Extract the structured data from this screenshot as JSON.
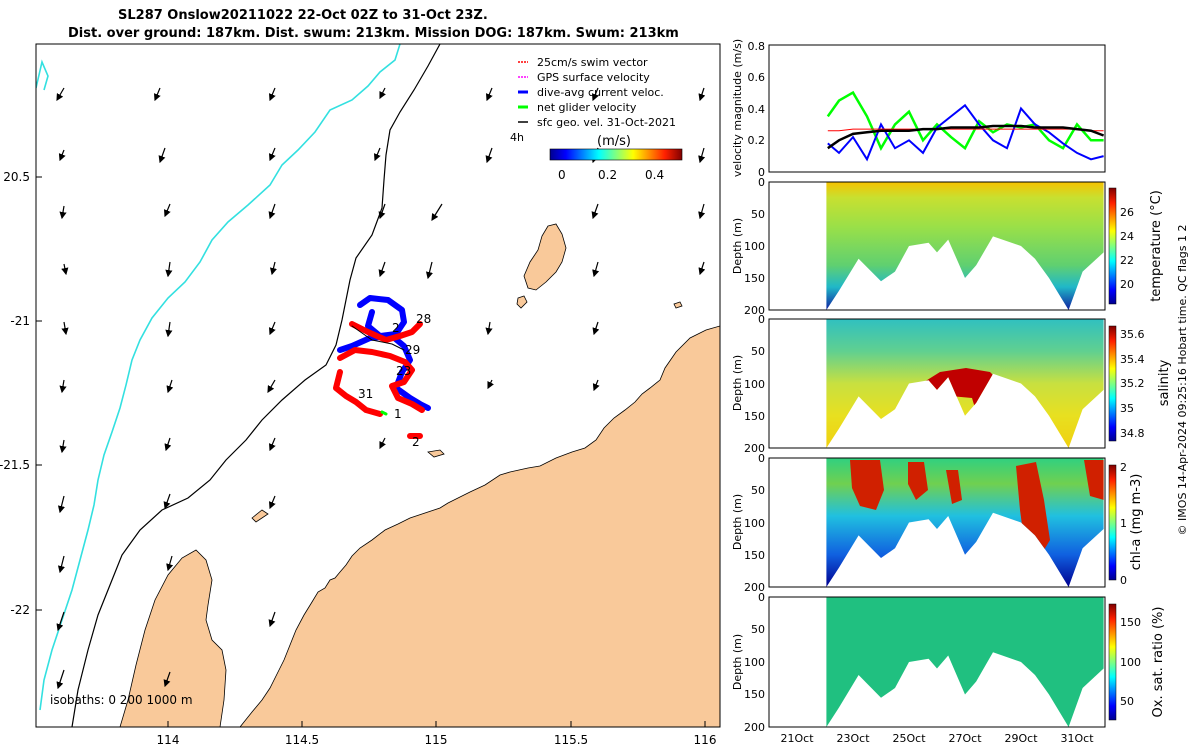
{
  "title": {
    "line1": "SL287 Onslow20211022 22-Oct 02Z to 31-Oct 23Z.",
    "line2": "Dist. over ground: 187km. Dist. swum: 213km. Mission DOG: 187km. Swum: 213km"
  },
  "copyright": "© IMOS 14-Apr-2024 09:25:16 Hobart time. QC flags 1  2",
  "colors": {
    "land": "#f9c99a",
    "coast_line": "#000000",
    "isobath": "#000000",
    "shallow_isobath": "#33e0e0",
    "swim_vector": "#ff0000",
    "dive_avg_current": "#0000ff",
    "net_glider_velocity": "#00ff00",
    "sfc_geo_vel": "#000000",
    "gps_surface_velocity": "#ff00ff"
  },
  "map": {
    "legend": [
      {
        "label": "25cm/s swim vector",
        "color": "#ff0000",
        "icon": "red-dash"
      },
      {
        "label": "GPS surface velocity",
        "color": "#ff00ff",
        "icon": "magenta-dash"
      },
      {
        "label": "dive-avg current veloc.",
        "color": "#0000ff",
        "icon": "blue-line"
      },
      {
        "label": "net glider velocity",
        "color": "#00ff00",
        "icon": "green-line"
      },
      {
        "label": "sfc geo. vel. 31-Oct-2021",
        "color": "#000000",
        "icon": "black-arrow"
      }
    ],
    "duration_label": "4h",
    "colorbar_unit": "(m/s)",
    "colorbar_ticks": [
      "0",
      "0.2",
      "0.4"
    ],
    "x_ticks": [
      "114",
      "114.5",
      "115",
      "115.5",
      "116"
    ],
    "y_ticks": [
      "20.5",
      "-21",
      "-21.5",
      "-22"
    ],
    "day_labels": [
      "28",
      "2",
      "29",
      "23",
      "31",
      "1",
      "2"
    ],
    "isobaths_label": "isobaths: 0   200  1000 m"
  },
  "chart_data": [
    {
      "type": "line",
      "ylabel": "velocity magnitude (m/s)",
      "ylim": [
        0,
        0.8
      ],
      "y_ticks": [
        "0",
        "0.2",
        "0.4",
        "0.6",
        "0.8"
      ],
      "series": [],
      "x_dates": [
        "22.1",
        "22.5",
        "23",
        "23.5",
        "24",
        "24.5",
        "25",
        "25.5",
        "26",
        "26.5",
        "27",
        "27.5",
        "28",
        "28.5",
        "29",
        "29.5",
        "30",
        "30.5",
        "31",
        "31.5",
        "31.95"
      ],
      "values_black": [
        0.15,
        0.2,
        0.24,
        0.25,
        0.26,
        0.26,
        0.26,
        0.27,
        0.27,
        0.28,
        0.28,
        0.28,
        0.29,
        0.29,
        0.29,
        0.28,
        0.28,
        0.28,
        0.27,
        0.26,
        0.23
      ],
      "values_blue": [
        0.18,
        0.12,
        0.22,
        0.08,
        0.3,
        0.15,
        0.2,
        0.12,
        0.28,
        0.35,
        0.42,
        0.3,
        0.2,
        0.15,
        0.4,
        0.3,
        0.25,
        0.18,
        0.12,
        0.08,
        0.1
      ],
      "values_green": [
        0.35,
        0.45,
        0.5,
        0.35,
        0.15,
        0.3,
        0.38,
        0.2,
        0.3,
        0.22,
        0.15,
        0.32,
        0.25,
        0.3,
        0.28,
        0.3,
        0.2,
        0.15,
        0.3,
        0.2,
        0.2
      ],
      "values_red": [
        0.26,
        0.26,
        0.27,
        0.27,
        0.27,
        0.27,
        0.27,
        0.27,
        0.27,
        0.27,
        0.27,
        0.27,
        0.27,
        0.27,
        0.27,
        0.27,
        0.27,
        0.27,
        0.27,
        0.26,
        0.26
      ]
    },
    {
      "type": "heatmap",
      "ylabel": "Depth (m)",
      "colorbar_label": "temperature (°C)",
      "y_ticks": [
        "0",
        "50",
        "100",
        "150",
        "200"
      ],
      "colorbar_ticks": [
        "26",
        "24",
        "22",
        "20"
      ],
      "clim": [
        18,
        27.5
      ]
    },
    {
      "type": "heatmap",
      "ylabel": "Depth (m)",
      "colorbar_label": "salinity",
      "y_ticks": [
        "0",
        "50",
        "100",
        "150",
        "200"
      ],
      "colorbar_ticks": [
        "35.6",
        "35.4",
        "35.2",
        "35",
        "34.8"
      ],
      "clim": [
        34.7,
        35.65
      ]
    },
    {
      "type": "heatmap",
      "ylabel": "Depth (m)",
      "colorbar_label": "chl-a (mg m-3)",
      "y_ticks": [
        "0",
        "50",
        "100",
        "150",
        "200"
      ],
      "colorbar_ticks": [
        "2",
        "1",
        "0"
      ],
      "clim": [
        0,
        2
      ]
    },
    {
      "type": "heatmap",
      "ylabel": "Depth (m)",
      "colorbar_label": "Ox. sat. ratio (%)",
      "y_ticks": [
        "0",
        "50",
        "100",
        "150",
        "200"
      ],
      "colorbar_ticks": [
        "150",
        "100",
        "50"
      ],
      "x_ticks": [
        "21Oct",
        "23Oct",
        "25Oct",
        "27Oct",
        "29Oct",
        "31Oct"
      ],
      "clim": [
        25,
        175
      ]
    }
  ]
}
